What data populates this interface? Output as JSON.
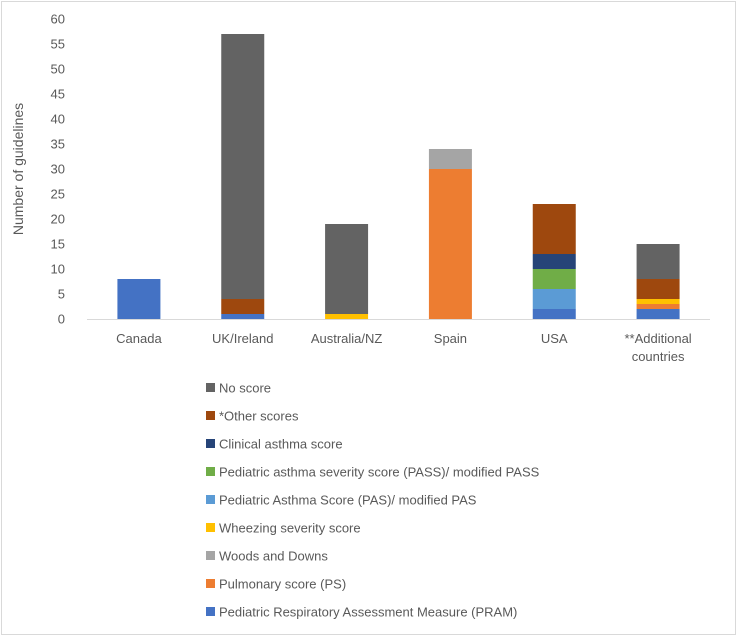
{
  "chart_data": {
    "type": "bar",
    "stacked": true,
    "title": "",
    "xlabel": "",
    "ylabel": "Number of guidelines",
    "ylim": [
      0,
      60
    ],
    "ytick_step": 5,
    "yticks": [
      "0",
      "5",
      "10",
      "15",
      "20",
      "25",
      "30",
      "35",
      "40",
      "45",
      "50",
      "55",
      "60"
    ],
    "grid": false,
    "legend_position": "bottom",
    "categories": [
      [
        "Canada"
      ],
      [
        "UK/Ireland"
      ],
      [
        "Australia/NZ"
      ],
      [
        "Spain"
      ],
      [
        "USA"
      ],
      [
        "**Additional",
        "countries"
      ]
    ],
    "series": [
      {
        "name": "Pediatric Respiratory Assessment Measure (PRAM)",
        "color": "#4472C4",
        "values": [
          8,
          1,
          0,
          0,
          2,
          2
        ]
      },
      {
        "name": "Pulmonary score (PS)",
        "color": "#ED7D31",
        "values": [
          0,
          0,
          0,
          30,
          0,
          1
        ]
      },
      {
        "name": "Woods and Downs",
        "color": "#A5A5A5",
        "values": [
          0,
          0,
          0,
          4,
          0,
          0
        ]
      },
      {
        "name": "Wheezing severity score",
        "color": "#FFC000",
        "values": [
          0,
          0,
          1,
          0,
          0,
          1
        ]
      },
      {
        "name": "Pediatric Asthma Score (PAS)/ modified PAS",
        "color": "#5B9BD5",
        "values": [
          0,
          0,
          0,
          0,
          4,
          0
        ]
      },
      {
        "name": "Pediatric asthma severity score (PASS)/ modified PASS",
        "color": "#70AD47",
        "values": [
          0,
          0,
          0,
          0,
          4,
          0
        ]
      },
      {
        "name": "Clinical asthma score",
        "color": "#264478",
        "values": [
          0,
          0,
          0,
          0,
          3,
          0
        ]
      },
      {
        "name": "*Other scores",
        "color": "#9E480E",
        "values": [
          0,
          3,
          0,
          0,
          10,
          4
        ]
      },
      {
        "name": "No score",
        "color": "#636363",
        "values": [
          0,
          53,
          18,
          0,
          0,
          7
        ]
      }
    ]
  }
}
